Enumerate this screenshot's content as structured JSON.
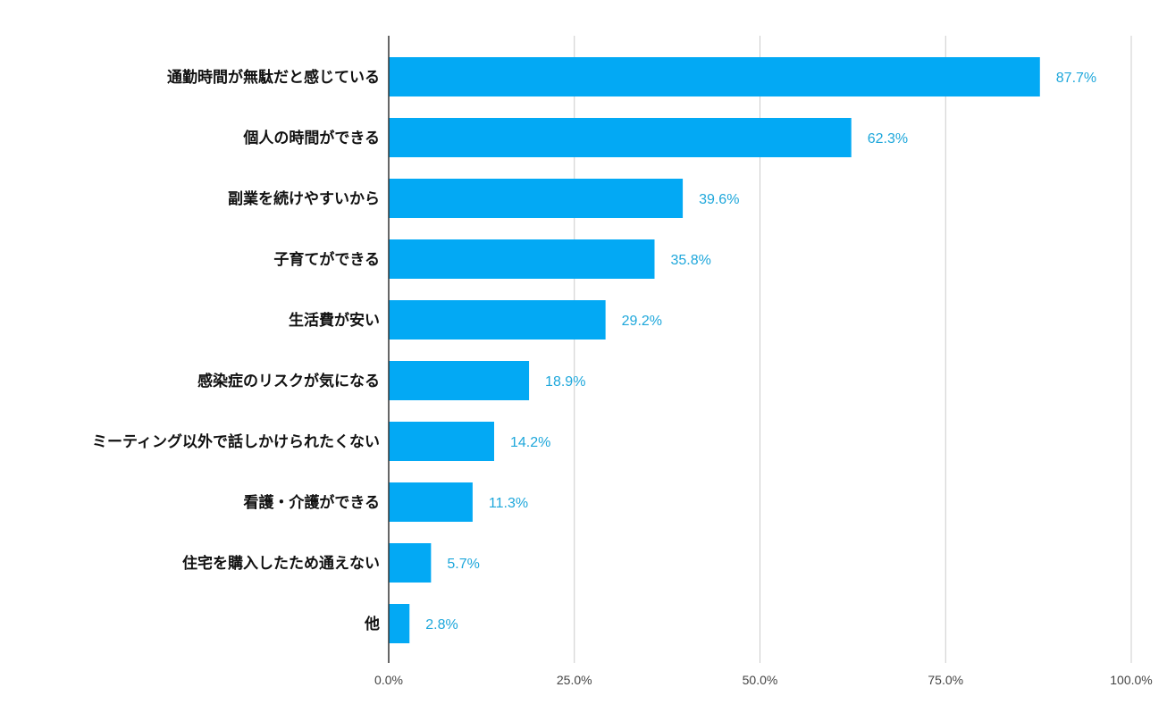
{
  "chart_data": {
    "type": "bar",
    "orientation": "horizontal",
    "title": "",
    "xlabel": "",
    "ylabel": "",
    "categories": [
      "通勤時間が無駄だと感じている",
      "個人の時間ができる",
      "副業を続けやすいから",
      "子育てができる",
      "生活費が安い",
      "感染症のリスクが気になる",
      "ミーティング以外で話しかけられたくない",
      "看護・介護ができる",
      "住宅を購入したため通えない",
      "他"
    ],
    "values": [
      87.7,
      62.3,
      39.6,
      35.8,
      29.2,
      18.9,
      14.2,
      11.3,
      5.7,
      2.8
    ],
    "data_labels": [
      "87.7%",
      "62.3%",
      "39.6%",
      "35.8%",
      "29.2%",
      "18.9%",
      "14.2%",
      "11.3%",
      "5.7%",
      "2.8%"
    ],
    "xlim": [
      0,
      100
    ],
    "x_ticks": [
      0,
      25,
      50,
      75,
      100
    ],
    "x_tick_labels": [
      "0.0%",
      "25.0%",
      "50.0%",
      "75.0%",
      "100.0%"
    ],
    "grid": true,
    "legend": "none",
    "colors": {
      "bar": "#03a9f4",
      "data_label": "#1ea7db",
      "gridline": "#cccccc",
      "axis": "#333333",
      "category_text": "#111111",
      "tick_text": "#444444"
    }
  }
}
